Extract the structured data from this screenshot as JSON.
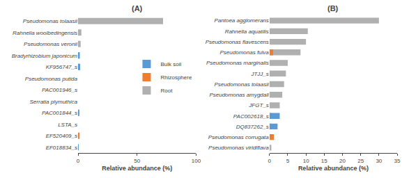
{
  "chart_data": [
    {
      "type": "bar",
      "orientation": "horizontal",
      "stacked": false,
      "title": "(A)",
      "categories": [
        "Pseudomonas tolaasii",
        "Rahnella woolbedingensis",
        "Pseudomonas veronii",
        "Bradyrhizobium japonicum",
        "KF956747_s",
        "Pseudomonas putida",
        "PAC001946_s",
        "Serratia plymuthica",
        "PAC001844_s",
        "LSTA_s",
        "EF520409_s",
        "EF018834_s"
      ],
      "series": [
        {
          "name": "Bulk soil",
          "color": "#5b9bd5",
          "values": [
            0,
            0,
            0,
            1.5,
            1.8,
            0,
            0,
            0,
            0.5,
            0,
            0,
            0.3
          ]
        },
        {
          "name": "Rhizosphere",
          "color": "#ed7d31",
          "values": [
            0,
            0,
            0,
            1.2,
            1.4,
            0,
            0,
            0,
            0.8,
            0,
            1.3,
            0
          ]
        },
        {
          "name": "Root",
          "color": "#b0b0b0",
          "values": [
            72,
            2.8,
            2.2,
            0,
            0,
            0,
            0,
            0,
            0,
            0,
            0,
            0
          ]
        }
      ],
      "xlabel": "Relative abundance (%)",
      "xlim": [
        0,
        100
      ],
      "xticks": [
        0,
        50,
        100
      ],
      "grid": false,
      "legend": "right"
    },
    {
      "type": "bar",
      "orientation": "horizontal",
      "stacked": false,
      "title": "(B)",
      "categories": [
        "Pantoea agglomerans",
        "Rahnella aquatilis",
        "Pseudomonas flavescens",
        "Pseudomonas fulva",
        "Pseudomonas marginalis",
        "JTJJ_s",
        "Pseudomonas tolaasii",
        "Pseudomonas amygdali",
        "JFGT_s",
        "PAC002618_s",
        "DQ837262_s",
        "Pseudomonas corrugata",
        "Pseudomonas viridiflava"
      ],
      "series": [
        {
          "name": "Bulk soil",
          "color": "#5b9bd5",
          "values": [
            0,
            0,
            0,
            0,
            0,
            0,
            0,
            0,
            0,
            2.8,
            2.2,
            0,
            0
          ]
        },
        {
          "name": "Rhizosphere",
          "color": "#ed7d31",
          "values": [
            0,
            0,
            0,
            1.0,
            0,
            0,
            0,
            0,
            0,
            0.5,
            0.5,
            1.2,
            0
          ]
        },
        {
          "name": "Root",
          "color": "#b0b0b0",
          "values": [
            30,
            10.5,
            10.0,
            8.5,
            5.0,
            4.5,
            4.0,
            3.5,
            2.8,
            0,
            0,
            0,
            0.5
          ]
        }
      ],
      "xlabel": "Relative abundance (%)",
      "xlim": [
        0,
        35
      ],
      "xticks": [
        0,
        5,
        10,
        15,
        20,
        25,
        30,
        35
      ],
      "grid": false
    }
  ]
}
